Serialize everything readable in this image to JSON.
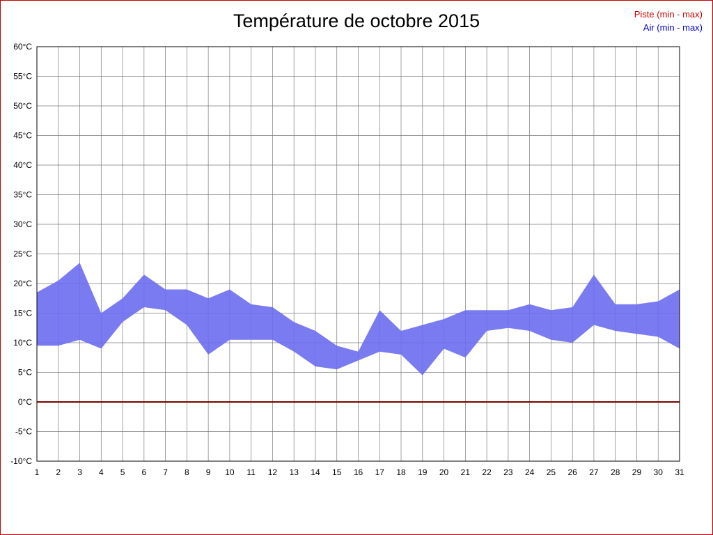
{
  "title": "Température de octobre 2015",
  "legend": [
    {
      "label": "Piste (min - max)",
      "color": "#cc0000"
    },
    {
      "label": "Air (min - max)",
      "color": "#0000cc"
    }
  ],
  "chart_data": {
    "type": "area",
    "title": "Température de octobre 2015",
    "xlabel": "",
    "ylabel": "",
    "x": [
      1,
      2,
      3,
      4,
      5,
      6,
      7,
      8,
      9,
      10,
      11,
      12,
      13,
      14,
      15,
      16,
      17,
      18,
      19,
      20,
      21,
      22,
      23,
      24,
      25,
      26,
      27,
      28,
      29,
      30,
      31
    ],
    "series": [
      {
        "name": "Air min",
        "values": [
          9.5,
          9.5,
          10.5,
          9,
          13.5,
          16,
          15.5,
          13,
          8,
          10.5,
          10.5,
          10.5,
          8.5,
          6,
          5.5,
          7,
          8.5,
          8,
          4.5,
          9,
          7.5,
          12,
          12.5,
          12,
          10.5,
          10,
          13,
          12,
          11.5,
          11,
          9
        ]
      },
      {
        "name": "Air max",
        "values": [
          18.5,
          20.5,
          23.5,
          15,
          17.5,
          21.5,
          19,
          19,
          17.5,
          19,
          16.5,
          16,
          13.5,
          12,
          9.5,
          8.5,
          15.5,
          12,
          13,
          14,
          15.5,
          15.5,
          15.5,
          16.5,
          15.5,
          16,
          21.5,
          16.5,
          16.5,
          17,
          19
        ]
      },
      {
        "name": "Piste",
        "values": [
          0,
          0,
          0,
          0,
          0,
          0,
          0,
          0,
          0,
          0,
          0,
          0,
          0,
          0,
          0,
          0,
          0,
          0,
          0,
          0,
          0,
          0,
          0,
          0,
          0,
          0,
          0,
          0,
          0,
          0,
          0
        ]
      }
    ],
    "ylim": [
      -10,
      60
    ],
    "ytick_step": 5,
    "y_suffix": "°C",
    "grid": true,
    "legend_position": "top-right",
    "band_color": "#6b6bf0",
    "piste_color": "#7a0000",
    "grid_color": "#7a7a7a",
    "axis_color": "#000000"
  }
}
